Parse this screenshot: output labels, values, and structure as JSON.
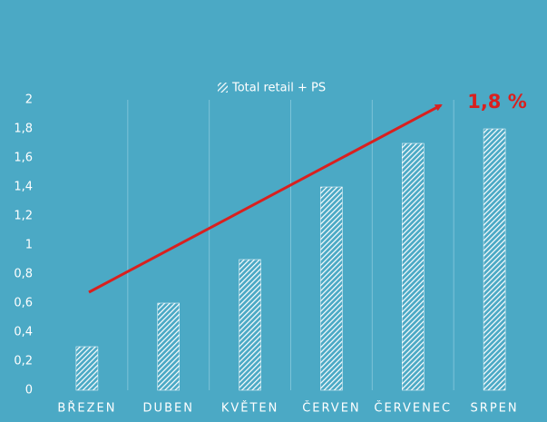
{
  "chart_data": {
    "type": "bar",
    "legend": "Total retail + PS",
    "annotation": "1,8 %",
    "categories": [
      "BŘEZEN",
      "DUBEN",
      "KVĚTEN",
      "ČERVEN",
      "ČERVENEC",
      "SRPEN"
    ],
    "values": [
      0.3,
      0.6,
      0.9,
      1.4,
      1.7,
      1.8
    ],
    "color": "#ffffff",
    "ylim": [
      0,
      2
    ],
    "yticks": [
      0,
      {
        "value": 0.2,
        "label": "0,2"
      },
      {
        "value": 0.4,
        "label": "0,4"
      },
      {
        "value": 0.6,
        "label": "0,6"
      },
      {
        "value": 0.8,
        "label": "0,8"
      },
      1,
      {
        "value": 1.2,
        "label": "1,2"
      },
      {
        "value": 1.4,
        "label": "1,4"
      },
      {
        "value": 1.6,
        "label": "1,6"
      },
      {
        "value": 1.8,
        "label": "1,8"
      },
      2
    ],
    "grid": true
  }
}
